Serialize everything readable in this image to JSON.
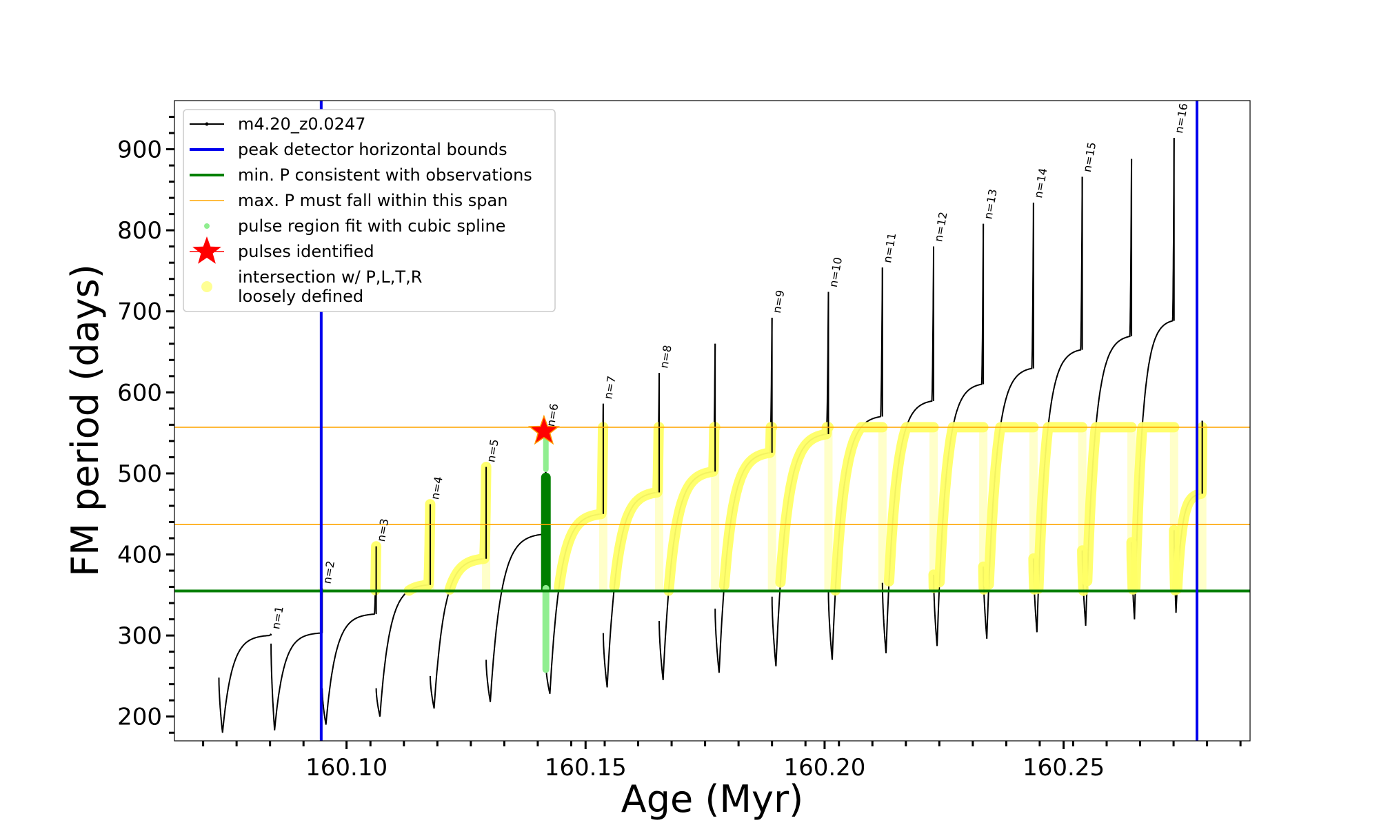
{
  "chart_data": {
    "type": "line",
    "xlabel": "Age (Myr)",
    "ylabel": "FM period (days)",
    "xlim": [
      160.064,
      160.289
    ],
    "ylim": [
      170,
      960
    ],
    "x_ticks": [
      160.1,
      160.15,
      160.2,
      160.25
    ],
    "x_tick_labels": [
      "160.10",
      "160.15",
      "160.20",
      "160.25"
    ],
    "y_ticks": [
      200,
      300,
      400,
      500,
      600,
      700,
      800,
      900
    ],
    "y_tick_labels": [
      "200",
      "300",
      "400",
      "500",
      "600",
      "700",
      "800",
      "900"
    ],
    "grid": false,
    "legend_position": "top-left",
    "legend": [
      {
        "label": "m4.20_z0.0247",
        "kind": "line-marker",
        "color": "#000000"
      },
      {
        "label": "peak detector horizontal bounds",
        "kind": "line",
        "color": "#0000ee"
      },
      {
        "label": "min. P consistent with observations",
        "kind": "line",
        "color": "#007f00"
      },
      {
        "label": "max. P must fall within this span",
        "kind": "thin-line",
        "color": "#ffa500"
      },
      {
        "label": "pulse region fit with cubic spline",
        "kind": "dot",
        "color": "#90ee90"
      },
      {
        "label": "pulses identified",
        "kind": "star",
        "color": "#ff0000"
      },
      {
        "label": "intersection w/ P,L,T,R",
        "label2": "loosely defined",
        "kind": "big-dot",
        "color": "#ffff66"
      }
    ],
    "vertical_bounds": [
      160.0947,
      160.2779
    ],
    "min_period": 355,
    "max_period_span": [
      437,
      557
    ],
    "highlight_pulse_x": 160.1417,
    "star": {
      "x": 160.1413,
      "y": 552
    },
    "pulses": [
      {
        "start": 160.0733,
        "end": 160.0842,
        "start_y": 248,
        "min_y": 180,
        "peak_y": 302,
        "label": "n=1"
      },
      {
        "start": 160.0842,
        "end": 160.0949,
        "start_y": 290,
        "min_y": 183,
        "peak_y": 358,
        "label": "n=2"
      },
      {
        "start": 160.0949,
        "end": 160.1062,
        "start_y": 235,
        "min_y": 190,
        "peak_y": 410,
        "label": "n=3"
      },
      {
        "start": 160.1062,
        "end": 160.1175,
        "start_y": 235,
        "min_y": 200,
        "peak_y": 462,
        "label": "n=4"
      },
      {
        "start": 160.1175,
        "end": 160.1292,
        "start_y": 250,
        "min_y": 210,
        "peak_y": 508,
        "label": "n=5"
      },
      {
        "start": 160.1292,
        "end": 160.1417,
        "start_y": 270,
        "min_y": 218,
        "peak_y": 552,
        "label": "n=6"
      },
      {
        "start": 160.1417,
        "end": 160.1537,
        "start_y": 265,
        "min_y": 228,
        "peak_y": 586,
        "label": "n=7"
      },
      {
        "start": 160.1537,
        "end": 160.1654,
        "start_y": 303,
        "min_y": 236,
        "peak_y": 624,
        "label": "n=8"
      },
      {
        "start": 160.1654,
        "end": 160.1771,
        "start_y": 318,
        "min_y": 245,
        "peak_y": 660,
        "label": ""
      },
      {
        "start": 160.1771,
        "end": 160.189,
        "start_y": 333,
        "min_y": 254,
        "peak_y": 692,
        "label": "n=9"
      },
      {
        "start": 160.189,
        "end": 160.2008,
        "start_y": 348,
        "min_y": 262,
        "peak_y": 724,
        "label": "n=10"
      },
      {
        "start": 160.2008,
        "end": 160.2121,
        "start_y": 355,
        "min_y": 270,
        "peak_y": 754,
        "label": "n=11"
      },
      {
        "start": 160.2121,
        "end": 160.2228,
        "start_y": 365,
        "min_y": 278,
        "peak_y": 780,
        "label": "n=12"
      },
      {
        "start": 160.2228,
        "end": 160.2332,
        "start_y": 375,
        "min_y": 287,
        "peak_y": 808,
        "label": "n=13"
      },
      {
        "start": 160.2332,
        "end": 160.2437,
        "start_y": 385,
        "min_y": 296,
        "peak_y": 834,
        "label": "n=14"
      },
      {
        "start": 160.2437,
        "end": 160.2539,
        "start_y": 395,
        "min_y": 304,
        "peak_y": 866,
        "label": "n=15"
      },
      {
        "start": 160.2539,
        "end": 160.2642,
        "start_y": 405,
        "min_y": 312,
        "peak_y": 888,
        "label": ""
      },
      {
        "start": 160.2642,
        "end": 160.2731,
        "start_y": 415,
        "min_y": 320,
        "peak_y": 914,
        "label": "n=16"
      },
      {
        "start": 160.2731,
        "end": 160.279,
        "start_y": 430,
        "min_y": 328,
        "peak_y": 565,
        "label": ""
      }
    ]
  }
}
